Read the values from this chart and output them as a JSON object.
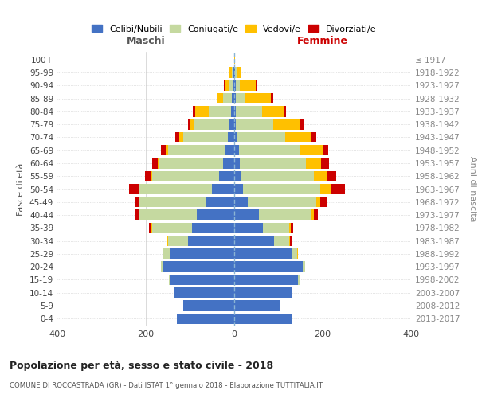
{
  "age_groups": [
    "0-4",
    "5-9",
    "10-14",
    "15-19",
    "20-24",
    "25-29",
    "30-34",
    "35-39",
    "40-44",
    "45-49",
    "50-54",
    "55-59",
    "60-64",
    "65-69",
    "70-74",
    "75-79",
    "80-84",
    "85-89",
    "90-94",
    "95-99",
    "100+"
  ],
  "birth_years": [
    "2013-2017",
    "2008-2012",
    "2003-2007",
    "1998-2002",
    "1993-1997",
    "1988-1992",
    "1983-1987",
    "1978-1982",
    "1973-1977",
    "1968-1972",
    "1963-1967",
    "1958-1962",
    "1953-1957",
    "1948-1952",
    "1943-1947",
    "1938-1942",
    "1933-1937",
    "1928-1932",
    "1923-1927",
    "1918-1922",
    "≤ 1917"
  ],
  "colors": {
    "celibi": "#4472c4",
    "coniugati": "#c5d9a0",
    "vedovi": "#ffc000",
    "divorziati": "#cc0000"
  },
  "maschi": {
    "celibi": [
      130,
      115,
      135,
      145,
      160,
      145,
      105,
      95,
      85,
      65,
      50,
      35,
      25,
      20,
      15,
      10,
      8,
      5,
      3,
      2,
      0
    ],
    "coniugati": [
      0,
      0,
      0,
      2,
      5,
      15,
      45,
      90,
      130,
      150,
      165,
      150,
      145,
      130,
      100,
      80,
      50,
      20,
      8,
      3,
      0
    ],
    "vedovi": [
      0,
      0,
      0,
      0,
      0,
      2,
      2,
      2,
      2,
      2,
      2,
      2,
      3,
      5,
      10,
      10,
      30,
      15,
      8,
      5,
      0
    ],
    "divorziati": [
      0,
      0,
      0,
      0,
      0,
      0,
      2,
      6,
      8,
      8,
      20,
      15,
      12,
      10,
      8,
      5,
      5,
      0,
      5,
      0,
      0
    ]
  },
  "femmine": {
    "celibi": [
      130,
      105,
      130,
      145,
      155,
      130,
      90,
      65,
      55,
      30,
      20,
      15,
      12,
      10,
      5,
      3,
      3,
      3,
      3,
      2,
      0
    ],
    "coniugati": [
      0,
      0,
      0,
      2,
      5,
      12,
      35,
      60,
      120,
      155,
      175,
      165,
      150,
      140,
      110,
      85,
      60,
      20,
      10,
      3,
      0
    ],
    "vedovi": [
      0,
      0,
      0,
      0,
      0,
      2,
      2,
      3,
      5,
      10,
      25,
      30,
      35,
      50,
      60,
      60,
      50,
      60,
      35,
      10,
      1
    ],
    "divorziati": [
      0,
      0,
      0,
      0,
      0,
      0,
      5,
      5,
      10,
      15,
      30,
      20,
      18,
      12,
      10,
      8,
      5,
      5,
      5,
      0,
      0
    ]
  },
  "xlim": 400,
  "title": "Popolazione per età, sesso e stato civile - 2018",
  "subtitle": "COMUNE DI ROCCASTRADA (GR) - Dati ISTAT 1° gennaio 2018 - Elaborazione TUTTITALIA.IT",
  "xlabel_left": "Maschi",
  "xlabel_right": "Femmine",
  "ylabel_left": "Fasce di età",
  "ylabel_right": "Anni di nascita",
  "legend_labels": [
    "Celibi/Nubili",
    "Coniugati/e",
    "Vedovi/e",
    "Divorziati/e"
  ],
  "background_color": "#ffffff",
  "grid_color": "#cccccc"
}
